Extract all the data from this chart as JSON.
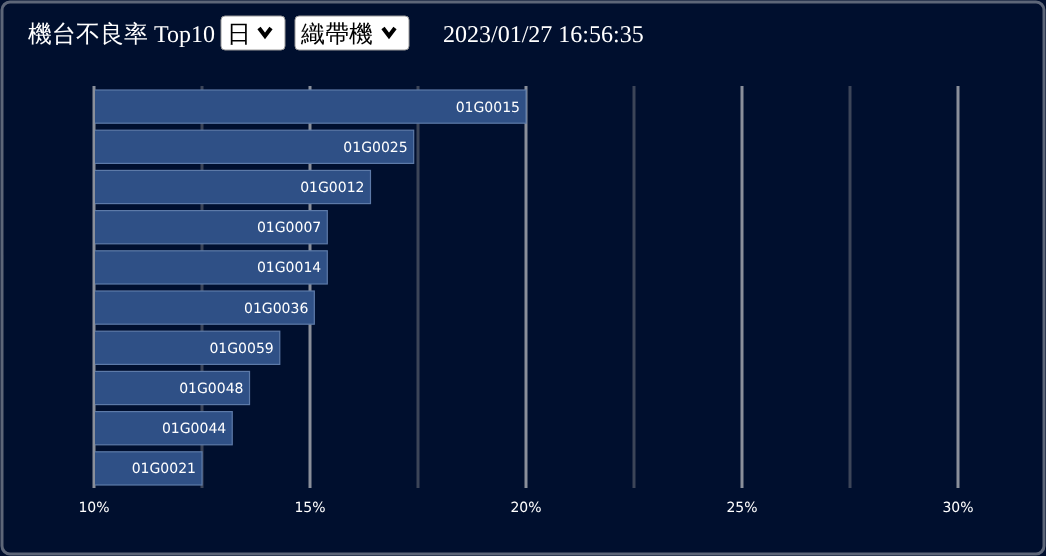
{
  "chart_data": {
    "type": "bar",
    "orientation": "horizontal",
    "title": "機台不良率 Top10",
    "annotations": [
      "日",
      "織帶機",
      "2023/01/27 16:56:35"
    ],
    "categories": [
      "01G0015",
      "01G0025",
      "01G0012",
      "01G0007",
      "01G0014",
      "01G0036",
      "01G0059",
      "01G0048",
      "01G0044",
      "01G0021"
    ],
    "values": [
      20.0,
      17.4,
      16.4,
      15.4,
      15.4,
      15.1,
      14.3,
      13.6,
      13.2,
      12.5
    ],
    "color": "#2f5086",
    "xlim": [
      10,
      30
    ],
    "xticks": [
      {
        "value": 10,
        "label": "10%"
      },
      {
        "value": 12.5,
        "label": null
      },
      {
        "value": 15,
        "label": "15%"
      },
      {
        "value": 17.5,
        "label": null
      },
      {
        "value": 20,
        "label": "20%"
      },
      {
        "value": 22.5,
        "label": null
      },
      {
        "value": 25,
        "label": "25%"
      },
      {
        "value": 27.5,
        "label": null
      },
      {
        "value": 30,
        "label": "30%"
      }
    ],
    "grid": "x"
  }
}
